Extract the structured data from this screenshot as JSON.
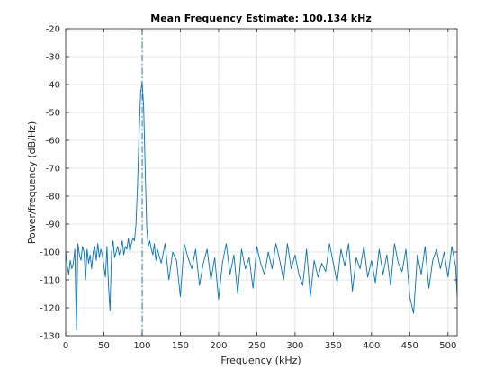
{
  "chart_data": {
    "type": "line",
    "title": "Mean Frequency Estimate: 100.134 kHz",
    "xlabel": "Frequency (kHz)",
    "ylabel": "Power/frequency (dB/Hz)",
    "xlim": [
      0,
      512
    ],
    "ylim": [
      -130,
      -20
    ],
    "x_ticks": [
      0,
      50,
      100,
      150,
      200,
      250,
      300,
      350,
      400,
      450,
      500
    ],
    "y_ticks": [
      -20,
      -30,
      -40,
      -50,
      -60,
      -70,
      -80,
      -90,
      -100,
      -110,
      -120,
      -130
    ],
    "grid": true,
    "legend": "none",
    "line_color": "#0072bd",
    "marker_line": {
      "x": 100.134,
      "style": "dash-dot",
      "color": "#0072bd"
    },
    "series": [
      {
        "x": [
          0,
          2,
          4,
          6,
          8,
          10,
          12,
          14,
          16,
          18,
          20,
          22,
          24,
          26,
          28,
          30,
          32,
          34,
          36,
          38,
          40,
          42,
          44,
          46,
          48,
          50,
          52,
          54,
          56,
          58,
          60,
          62,
          64,
          66,
          68,
          70,
          72,
          74,
          76,
          78,
          80,
          82,
          84,
          86,
          88,
          90,
          92,
          94,
          96,
          98,
          100,
          102,
          104,
          106,
          108,
          110,
          112,
          114,
          116,
          118,
          120,
          125,
          130,
          135,
          140,
          145,
          150,
          155,
          160,
          165,
          170,
          175,
          180,
          185,
          190,
          195,
          200,
          205,
          210,
          215,
          220,
          225,
          230,
          235,
          240,
          245,
          250,
          255,
          260,
          265,
          270,
          275,
          280,
          285,
          290,
          295,
          300,
          305,
          310,
          315,
          320,
          325,
          330,
          335,
          340,
          345,
          350,
          355,
          360,
          365,
          370,
          375,
          380,
          385,
          390,
          395,
          400,
          405,
          410,
          415,
          420,
          425,
          430,
          435,
          440,
          445,
          450,
          455,
          460,
          465,
          470,
          475,
          480,
          485,
          490,
          495,
          500,
          505,
          510,
          512
        ],
        "y": [
          -100,
          -105,
          -108,
          -103,
          -106,
          -104,
          -99,
          -128,
          -97,
          -101,
          -103,
          -98,
          -100,
          -110,
          -99,
          -104,
          -101,
          -106,
          -100,
          -98,
          -103,
          -97,
          -102,
          -99,
          -101,
          -105,
          -109,
          -98,
          -112,
          -121,
          -100,
          -96,
          -102,
          -100,
          -98,
          -101,
          -99,
          -96,
          -101,
          -98,
          -99,
          -95,
          -100,
          -97,
          -95,
          -96,
          -90,
          -76,
          -58,
          -43,
          -39,
          -48,
          -70,
          -91,
          -98,
          -96,
          -99,
          -101,
          -97,
          -103,
          -99,
          -104,
          -97,
          -110,
          -100,
          -103,
          -116,
          -97,
          -102,
          -106,
          -99,
          -112,
          -104,
          -99,
          -110,
          -102,
          -117,
          -104,
          -97,
          -108,
          -101,
          -115,
          -99,
          -106,
          -102,
          -113,
          -98,
          -104,
          -108,
          -100,
          -106,
          -97,
          -103,
          -110,
          -97,
          -106,
          -101,
          -108,
          -112,
          -99,
          -116,
          -103,
          -109,
          -104,
          -107,
          -97,
          -104,
          -111,
          -99,
          -105,
          -97,
          -114,
          -102,
          -106,
          -98,
          -109,
          -103,
          -111,
          -99,
          -108,
          -101,
          -112,
          -97,
          -104,
          -107,
          -99,
          -116,
          -122,
          -101,
          -108,
          -98,
          -113,
          -103,
          -99,
          -106,
          -100,
          -109,
          -98,
          -105,
          -116
        ]
      }
    ]
  }
}
